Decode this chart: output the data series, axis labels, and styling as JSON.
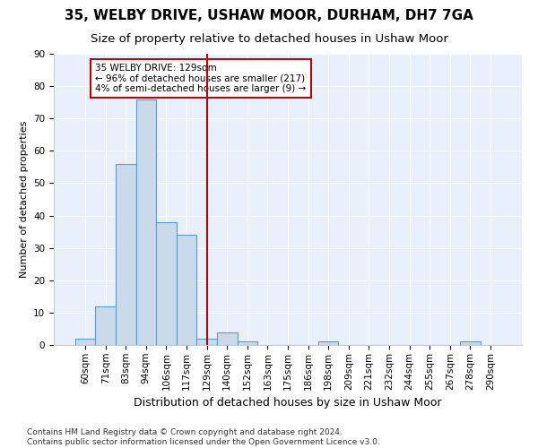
{
  "title1": "35, WELBY DRIVE, USHAW MOOR, DURHAM, DH7 7GA",
  "title2": "Size of property relative to detached houses in Ushaw Moor",
  "xlabel": "Distribution of detached houses by size in Ushaw Moor",
  "ylabel": "Number of detached properties",
  "categories": [
    "60sqm",
    "71sqm",
    "83sqm",
    "94sqm",
    "106sqm",
    "117sqm",
    "129sqm",
    "140sqm",
    "152sqm",
    "163sqm",
    "175sqm",
    "186sqm",
    "198sqm",
    "209sqm",
    "221sqm",
    "232sqm",
    "244sqm",
    "255sqm",
    "267sqm",
    "278sqm",
    "290sqm"
  ],
  "values": [
    2,
    12,
    56,
    76,
    38,
    34,
    2,
    4,
    1,
    0,
    0,
    0,
    1,
    0,
    0,
    0,
    0,
    0,
    0,
    1,
    0
  ],
  "bar_color": "#c9daea",
  "bar_edge_color": "#5b9bd5",
  "vline_x_index": 6,
  "vline_color": "#c00000",
  "annotation_text": "35 WELBY DRIVE: 129sqm\n← 96% of detached houses are smaller (217)\n4% of semi-detached houses are larger (9) →",
  "annotation_box_color": "#ffffff",
  "annotation_box_edge": "#c00000",
  "ylim": [
    0,
    90
  ],
  "yticks": [
    0,
    10,
    20,
    30,
    40,
    50,
    60,
    70,
    80,
    90
  ],
  "footnote": "Contains HM Land Registry data © Crown copyright and database right 2024.\nContains public sector information licensed under the Open Government Licence v3.0.",
  "bg_color": "#e8f0fb",
  "fig_bg": "#ffffff",
  "title1_fontsize": 11,
  "title2_fontsize": 9.5,
  "xlabel_fontsize": 9,
  "ylabel_fontsize": 8,
  "footnote_fontsize": 6.5,
  "tick_fontsize": 7.5,
  "annotation_fontsize": 7.5
}
